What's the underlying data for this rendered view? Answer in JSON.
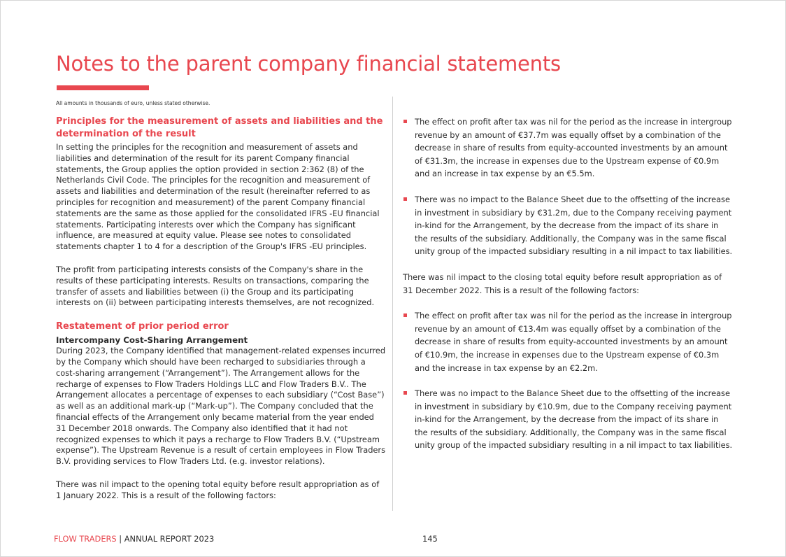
{
  "title": "Notes to the parent company financial statements",
  "amounts_note": "All amounts in thousands of euro, unless stated otherwise.",
  "left": {
    "section1_heading": "Principles for the measurement of assets and liabilities and the determination of the result",
    "section1_p1": "In setting the principles for the recognition and measurement of assets and liabilities and determination of the result for its parent Company financial statements, the Group applies the option provided in section 2:362 (8) of the Netherlands Civil Code. The principles for the recognition and measurement of assets and liabilities and determination of the result (hereinafter referred to as principles for recognition and measurement) of the parent Company financial statements are the same as those applied for the consolidated IFRS -EU financial statements. Participating interests over which the Company has significant influence, are measured at equity value. Please see notes to consolidated statements chapter 1 to 4 for a description of the Group's IFRS -EU principles.",
    "section1_p2": "The profit from participating interests consists of the Company's share in the results of these participating interests. Results on transactions, comparing the transfer of assets and liabilities between (i) the Group and its participating interests on (ii) between participating interests themselves, are not recognized.",
    "section2_heading": "Restatement of prior period error",
    "section2_subheading": "Intercompany Cost-Sharing Arrangement",
    "section2_p1": "During 2023, the Company identified that management-related expenses incurred by the Company which should have been recharged to subsidiaries through a cost-sharing arrangement (“Arrangement”). The Arrangement allows for the recharge of expenses to Flow Traders Holdings LLC and Flow Traders B.V.. The Arrangement allocates a percentage of expenses to each subsidiary (“Cost Base”) as well as an additional mark-up (“Mark-up”). The Company concluded that the financial effects of the Arrangement only became material from the year ended 31 December 2018 onwards. The Company also identified that it had not recognized expenses to which it pays a recharge to Flow Traders B.V. (“Upstream expense”). The Upstream Revenue is a result of certain employees in Flow Traders B.V. providing services to Flow Traders Ltd. (e.g. investor relations).",
    "section2_p2": "There was nil impact to the opening total equity before result appropriation as of 1 January 2022. This is a result of the following factors:"
  },
  "right": {
    "bullets_a": [
      "The effect on profit after tax was nil for the period as the increase in intergroup revenue by an amount of €37.7m was equally offset by a combination of the decrease in share of results from equity-accounted investments by an amount of €31.3m,  the increase in expenses due to the Upstream expense of €0.9m and an increase in tax expense by an €5.5m.",
      "There was no impact to the Balance Sheet due to the offsetting of the increase in investment in subsidiary by €31.2m, due to the Company receiving payment in-kind for the Arrangement, by the decrease from the impact of its share in the results of the subsidiary. Additionally, the Company was in the same fiscal unity group of the impacted subsidiary resulting in a nil impact to tax liabilities."
    ],
    "closing_intro": "There was nil impact to the closing total equity before result appropriation as of 31 December 2022. This is a result of the following factors:",
    "bullets_b": [
      "The effect on profit after tax was nil for the period as the increase in intergroup revenue by an amount of €13.4m was equally offset by a combination of the decrease in share of results from equity-accounted investments by an amount of €10.9m, the increase in expenses due to the Upstream expense of €0.3m and the increase in tax expense by an €2.2m.",
      "There was no impact to the Balance Sheet due to the offsetting of the increase in investment in subsidiary by €10.9m, due to the Company receiving payment in-kind for the Arrangement, by the decrease from the impact of its share in the results of the subsidiary. Additionally, the Company was in the same fiscal unity group of the impacted subsidiary resulting in a nil impact to tax liabilities."
    ]
  },
  "footer": {
    "brand": "FLOW TRADERS",
    "separator": " | ",
    "report": "ANNUAL REPORT 2023",
    "page_number": "145"
  },
  "colors": {
    "accent": "#e8474f",
    "text": "#2b2b2b"
  }
}
